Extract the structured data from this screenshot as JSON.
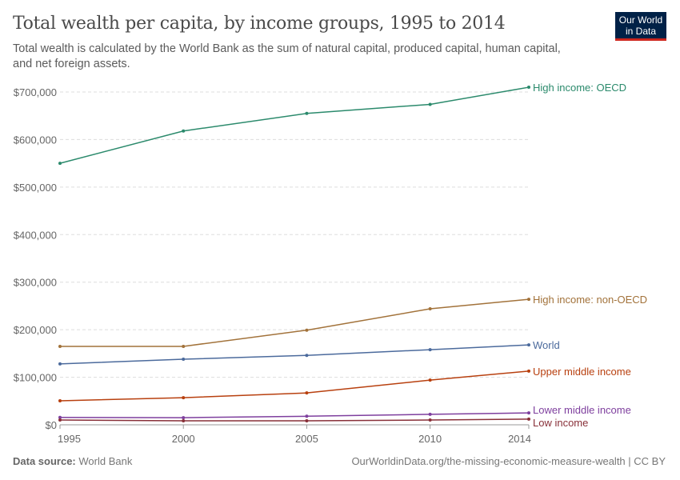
{
  "title": "Total wealth per capita, by income groups, 1995 to 2014",
  "subtitle": "Total wealth is calculated by the World Bank as the sum of natural capital, produced capital, human capital, and net foreign assets.",
  "logo": "Our World in Data",
  "footer": {
    "source_label": "Data source:",
    "source": "World Bank",
    "url": "OurWorldinData.org/the-missing-economic-measure-wealth | CC BY"
  },
  "chart_data": {
    "type": "line",
    "x": [
      1995,
      2000,
      2005,
      2010,
      2014
    ],
    "xticks": [
      "1995",
      "2000",
      "2005",
      "2010",
      "2014"
    ],
    "yticks": [
      "$0",
      "$100,000",
      "$200,000",
      "$300,000",
      "$400,000",
      "$500,000",
      "$600,000",
      "$700,000"
    ],
    "ylim": [
      0,
      700000
    ],
    "grid": true,
    "legend": "inline-right",
    "series": [
      {
        "name": "High income: OECD",
        "color": "#2b8a6c",
        "values": [
          550000,
          618000,
          655000,
          674000,
          710000
        ]
      },
      {
        "name": "High income: non-OECD",
        "color": "#a2723a",
        "values": [
          165000,
          165000,
          199000,
          244000,
          264000
        ]
      },
      {
        "name": "World",
        "color": "#4b6a9c",
        "values": [
          128000,
          138000,
          146000,
          158000,
          168000
        ]
      },
      {
        "name": "Upper middle income",
        "color": "#b8400f",
        "values": [
          50500,
          57000,
          67000,
          94000,
          113000
        ]
      },
      {
        "name": "Lower middle income",
        "color": "#7e3f9e",
        "values": [
          15500,
          15000,
          18000,
          22000,
          25000
        ]
      },
      {
        "name": "Low income",
        "color": "#883039",
        "values": [
          10000,
          8500,
          8500,
          10000,
          12000
        ]
      }
    ]
  }
}
